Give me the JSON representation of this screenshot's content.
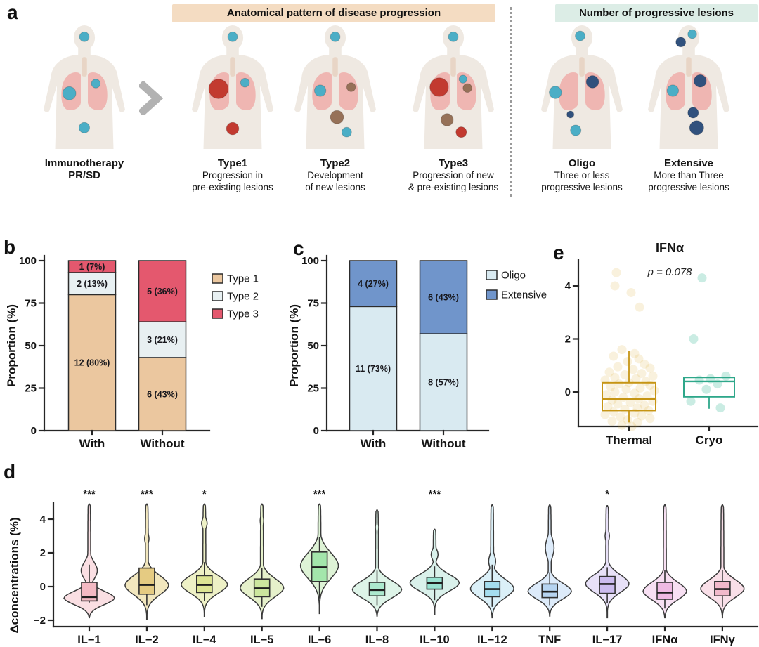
{
  "panels": {
    "a": "a",
    "b": "b",
    "c": "c",
    "d": "d",
    "e": "e"
  },
  "panel_a": {
    "header_left": "Anatomical pattern of disease progression",
    "header_right": "Number of progressive lesions",
    "colors": {
      "body": "#EFE9E2",
      "lungs": "#EFB6B2",
      "trachea": "#E8D5C6",
      "lesion_existing": "#4BAEC6",
      "lesion_progressed": "#C23A30",
      "lesion_new": "#967158",
      "lesion_progressive": "#31517D"
    },
    "figures": [
      {
        "id": "baseline",
        "title": "Immunotherapy",
        "sub": "PR/SD",
        "desc1": "",
        "desc2": "",
        "lesions": [
          [
            "existing",
            50,
            13,
            5.5
          ],
          [
            "existing",
            33,
            77,
            7.5
          ],
          [
            "existing",
            63,
            66,
            5
          ],
          [
            "existing",
            50,
            116,
            6
          ]
        ]
      },
      {
        "id": "type1",
        "title": "Type1",
        "sub": "",
        "desc1": "Progression in",
        "desc2": "pre-existing lesions",
        "lesions": [
          [
            "existing",
            50,
            13,
            5.5
          ],
          [
            "progressed",
            34,
            72,
            11
          ],
          [
            "existing",
            64,
            65,
            5
          ],
          [
            "progressed",
            50,
            117,
            7
          ]
        ]
      },
      {
        "id": "type2",
        "title": "Type2",
        "sub": "",
        "desc1": "Development",
        "desc2": "of new lesions",
        "lesions": [
          [
            "existing",
            50,
            13,
            5.5
          ],
          [
            "existing",
            33,
            74,
            6.5
          ],
          [
            "new",
            68,
            70,
            5
          ],
          [
            "new",
            52,
            104,
            7.5
          ],
          [
            "existing",
            63,
            121,
            5.5
          ]
        ]
      },
      {
        "id": "type3",
        "title": "Type3",
        "sub": "",
        "desc1": "Progression of new",
        "desc2": "& pre-existing lesions",
        "lesions": [
          [
            "existing",
            50,
            13,
            5.5
          ],
          [
            "progressed",
            34,
            70,
            10.5
          ],
          [
            "existing",
            61,
            61,
            4.5
          ],
          [
            "new",
            66,
            71,
            5
          ],
          [
            "new",
            43,
            107,
            7
          ],
          [
            "progressed",
            59,
            121,
            6
          ]
        ]
      },
      {
        "id": "oligo",
        "title": "Oligo",
        "sub": "",
        "desc1": "Three or less",
        "desc2": "progressive lesions",
        "lesions": [
          [
            "existing",
            48,
            12,
            5.5
          ],
          [
            "progressive",
            62,
            64,
            7
          ],
          [
            "existing",
            20,
            76,
            7
          ],
          [
            "progressive",
            37,
            101,
            4
          ],
          [
            "existing",
            43,
            119,
            6
          ]
        ]
      },
      {
        "id": "extensive",
        "title": "Extensive",
        "sub": "",
        "desc1": "More than Three",
        "desc2": "progressive lesions",
        "lesions": [
          [
            "existing",
            54,
            10,
            5
          ],
          [
            "progressive",
            41,
            19,
            5.5
          ],
          [
            "existing",
            32,
            74,
            6.5
          ],
          [
            "progressive",
            63,
            63,
            7
          ],
          [
            "progressive",
            55,
            99,
            6
          ],
          [
            "progressive",
            59,
            116,
            8
          ]
        ]
      }
    ]
  },
  "chart_data": [
    {
      "id": "panel_b",
      "type": "stacked_bar",
      "categories": [
        "With",
        "Without"
      ],
      "ylabel": "Proportion (%)",
      "yticks": [
        0,
        25,
        50,
        75,
        100
      ],
      "ylim": [
        0,
        100
      ],
      "series": [
        {
          "name": "Type 1",
          "color": "#EBC79F",
          "values": [
            80,
            43
          ],
          "labels": [
            "12 (80%)",
            "6 (43%)"
          ]
        },
        {
          "name": "Type 2",
          "color": "#E8F0F2",
          "values": [
            13,
            21
          ],
          "labels": [
            "2 (13%)",
            "3 (21%)"
          ]
        },
        {
          "name": "Type 3",
          "color": "#E4586E",
          "values": [
            7,
            36
          ],
          "labels": [
            "1 (7%)",
            "5 (36%)"
          ]
        }
      ],
      "legend": [
        {
          "label": "Type 1",
          "color": "#EBC79F"
        },
        {
          "label": "Type 2",
          "color": "#E8F0F2"
        },
        {
          "label": "Type 3",
          "color": "#E4586E"
        }
      ]
    },
    {
      "id": "panel_c",
      "type": "stacked_bar",
      "categories": [
        "With",
        "Without"
      ],
      "ylabel": "Proportion (%)",
      "yticks": [
        0,
        25,
        50,
        75,
        100
      ],
      "ylim": [
        0,
        100
      ],
      "series": [
        {
          "name": "Oligo",
          "color": "#D9EAF1",
          "values": [
            73,
            57
          ],
          "labels": [
            "11 (73%)",
            "8 (57%)"
          ]
        },
        {
          "name": "Extensive",
          "color": "#7095CB",
          "values": [
            27,
            43
          ],
          "labels": [
            "4 (27%)",
            "6 (43%)"
          ]
        }
      ],
      "legend": [
        {
          "label": "Oligo",
          "color": "#D9EAF1"
        },
        {
          "label": "Extensive",
          "color": "#7095CB"
        }
      ]
    },
    {
      "id": "panel_e",
      "type": "box_scatter",
      "title": "IFNα",
      "pvalue": "p = 0.078",
      "yticks": [
        0,
        2,
        4
      ],
      "ylim": [
        -1.6,
        5
      ],
      "groups": [
        {
          "label": "Thermal",
          "color": "#D8A62B",
          "box_color": "#C69515",
          "opacity": 0.16,
          "box": {
            "q1": -0.7,
            "med": -0.27,
            "q3": 0.35,
            "whi": 1.55,
            "wlo": -1.15
          },
          "points": [
            [
              4.5,
              -18
            ],
            [
              4.0,
              -20
            ],
            [
              3.75,
              3
            ],
            [
              3.2,
              15
            ],
            [
              1.6,
              -10
            ],
            [
              1.45,
              8
            ],
            [
              1.35,
              -22
            ],
            [
              1.25,
              14
            ],
            [
              1.15,
              -2
            ],
            [
              1.05,
              22
            ],
            [
              0.95,
              -16
            ],
            [
              0.9,
              30
            ],
            [
              0.85,
              6
            ],
            [
              0.75,
              -28
            ],
            [
              0.7,
              18
            ],
            [
              0.65,
              -6
            ],
            [
              0.6,
              34
            ],
            [
              0.55,
              -20
            ],
            [
              0.5,
              10
            ],
            [
              0.45,
              -34
            ],
            [
              0.4,
              24
            ],
            [
              0.35,
              0
            ],
            [
              0.3,
              -14
            ],
            [
              0.25,
              30
            ],
            [
              0.2,
              -26
            ],
            [
              0.15,
              16
            ],
            [
              0.1,
              -4
            ],
            [
              0.05,
              36
            ],
            [
              0.0,
              -20
            ],
            [
              -0.05,
              8
            ],
            [
              -0.1,
              -32
            ],
            [
              -0.15,
              26
            ],
            [
              -0.2,
              -8
            ],
            [
              -0.25,
              14
            ],
            [
              -0.3,
              -24
            ],
            [
              -0.35,
              34
            ],
            [
              -0.4,
              2
            ],
            [
              -0.45,
              -16
            ],
            [
              -0.5,
              22
            ],
            [
              -0.55,
              -30
            ],
            [
              -0.6,
              12
            ],
            [
              -0.65,
              -6
            ],
            [
              -0.7,
              28
            ],
            [
              -0.75,
              -22
            ],
            [
              -0.8,
              8
            ],
            [
              -0.85,
              -34
            ],
            [
              -0.9,
              18
            ],
            [
              -0.95,
              -12
            ],
            [
              -1.0,
              30
            ],
            [
              -1.05,
              -2
            ],
            [
              -1.1,
              -24
            ],
            [
              -1.15,
              12
            ],
            [
              -1.25,
              -10
            ],
            [
              -1.3,
              4
            ]
          ]
        },
        {
          "label": "Cryo",
          "color": "#4EBFA3",
          "box_color": "#2EA78A",
          "opacity": 0.3,
          "box": {
            "q1": -0.18,
            "med": 0.4,
            "q3": 0.55,
            "whi": 0.55,
            "wlo": -0.63
          },
          "points": [
            [
              4.3,
              -10
            ],
            [
              2.0,
              -22
            ],
            [
              0.6,
              24
            ],
            [
              0.5,
              2
            ],
            [
              0.45,
              -14
            ],
            [
              0.3,
              12
            ],
            [
              0.1,
              -4
            ],
            [
              -0.35,
              -26
            ],
            [
              -0.6,
              16
            ]
          ]
        }
      ]
    },
    {
      "id": "panel_d",
      "type": "violin",
      "ylabel": "Δconcentrations (%)",
      "yticks": [
        -2,
        0,
        2,
        4
      ],
      "ylim": [
        -2.4,
        4.9
      ],
      "violins": [
        {
          "label": "IL−1",
          "fill": "#FADFE3",
          "box_fill": "#F3B9C3",
          "sig": "***",
          "bottom": -1.85,
          "top": 4.9,
          "mode": -0.7,
          "sigma": 0.42,
          "maxw": 36,
          "bump": [
            0.95,
            0.32,
            0.5
          ],
          "box": {
            "q1": -0.85,
            "med": -0.62,
            "q3": 0.25,
            "whi": 1.3,
            "wlo": -0.95
          }
        },
        {
          "label": "IL−2",
          "fill": "#F2E7BE",
          "box_fill": "#E5CB82",
          "sig": "***",
          "bottom": -1.95,
          "top": 4.9,
          "mode": 0.05,
          "sigma": 0.6,
          "maxw": 31,
          "bump": [
            2.85,
            0.1,
            0.3
          ],
          "box": {
            "q1": -0.45,
            "med": 0.1,
            "q3": 1.1,
            "whi": 1.1,
            "wlo": -1.1
          }
        },
        {
          "label": "IL−4",
          "fill": "#EEF1C6",
          "box_fill": "#DDE594",
          "sig": "*",
          "bottom": -1.8,
          "top": 4.9,
          "mode": 0.1,
          "sigma": 0.55,
          "maxw": 33,
          "bump": [
            3.75,
            0.12,
            0.28
          ],
          "box": {
            "q1": -0.35,
            "med": 0.1,
            "q3": 0.65,
            "whi": 1.45,
            "wlo": -0.85
          }
        },
        {
          "label": "IL−5",
          "fill": "#E6F1CB",
          "box_fill": "#CCE69E",
          "sig": "",
          "bottom": -1.9,
          "top": 4.9,
          "mode": -0.1,
          "sigma": 0.58,
          "maxw": 31,
          "bump": [
            3.9,
            0.08,
            0.3
          ],
          "box": {
            "q1": -0.6,
            "med": -0.1,
            "q3": 0.45,
            "whi": 1.1,
            "wlo": -1.2
          }
        },
        {
          "label": "IL−6",
          "fill": "#DEF3D6",
          "box_fill": "#A3E6AB",
          "sig": "***",
          "bottom": -1.6,
          "top": 4.9,
          "mode": 1.2,
          "sigma": 0.8,
          "maxw": 27,
          "bump": null,
          "box": {
            "q1": 0.3,
            "med": 1.15,
            "q3": 2.05,
            "whi": 2.95,
            "wlo": -0.7
          }
        },
        {
          "label": "IL−8",
          "fill": "#DEF4E8",
          "box_fill": "#ACE9CE",
          "sig": "",
          "bottom": -1.75,
          "top": 4.55,
          "mode": -0.2,
          "sigma": 0.55,
          "maxw": 35,
          "bump": [
            3.5,
            0.07,
            0.25
          ],
          "box": {
            "q1": -0.55,
            "med": -0.2,
            "q3": 0.25,
            "whi": 0.95,
            "wlo": -1.1
          }
        },
        {
          "label": "IL−10",
          "fill": "#DAF1EB",
          "box_fill": "#99E3D2",
          "sig": "***",
          "bottom": -1.65,
          "top": 3.4,
          "mode": 0.2,
          "sigma": 0.52,
          "maxw": 35,
          "bump": [
            1.9,
            0.14,
            0.3
          ],
          "box": {
            "q1": -0.15,
            "med": 0.2,
            "q3": 0.55,
            "whi": 1.2,
            "wlo": -0.8
          }
        },
        {
          "label": "IL−12",
          "fill": "#DBF0F8",
          "box_fill": "#A5DDEF",
          "sig": "",
          "bottom": -1.85,
          "top": 4.85,
          "mode": -0.15,
          "sigma": 0.58,
          "maxw": 31,
          "bump": [
            1.5,
            0.16,
            0.4
          ],
          "box": {
            "q1": -0.6,
            "med": -0.15,
            "q3": 0.3,
            "whi": 1.3,
            "wlo": -1.2
          }
        },
        {
          "label": "TNF",
          "fill": "#DDEBFA",
          "box_fill": "#B6D4F1",
          "sig": "",
          "bottom": -1.75,
          "top": 4.85,
          "mode": -0.3,
          "sigma": 0.5,
          "maxw": 31,
          "bump": [
            2.3,
            0.2,
            0.55
          ],
          "box": {
            "q1": -0.65,
            "med": -0.3,
            "q3": 0.15,
            "whi": 0.85,
            "wlo": -1.1
          }
        },
        {
          "label": "IL−17",
          "fill": "#E8E1F8",
          "box_fill": "#CCBCEF",
          "sig": "*",
          "bottom": -1.85,
          "top": 4.8,
          "mode": 0.15,
          "sigma": 0.55,
          "maxw": 31,
          "bump": [
            3.0,
            0.1,
            0.3
          ],
          "box": {
            "q1": -0.4,
            "med": 0.15,
            "q3": 0.6,
            "whi": 1.15,
            "wlo": -1.0
          }
        },
        {
          "label": "IFNα",
          "fill": "#F8E0F3",
          "box_fill": "#EFBAE3",
          "sig": "",
          "bottom": -1.85,
          "top": 4.85,
          "mode": -0.3,
          "sigma": 0.55,
          "maxw": 31,
          "bump": null,
          "box": {
            "q1": -0.75,
            "med": -0.35,
            "q3": 0.25,
            "whi": 1.0,
            "wlo": -1.3
          }
        },
        {
          "label": "IFNγ",
          "fill": "#F9DFE8",
          "box_fill": "#F2B9CB",
          "sig": "",
          "bottom": -1.85,
          "top": 4.85,
          "mode": -0.15,
          "sigma": 0.55,
          "maxw": 31,
          "bump": null,
          "box": {
            "q1": -0.55,
            "med": -0.15,
            "q3": 0.3,
            "whi": 1.0,
            "wlo": -1.2
          }
        }
      ]
    }
  ]
}
